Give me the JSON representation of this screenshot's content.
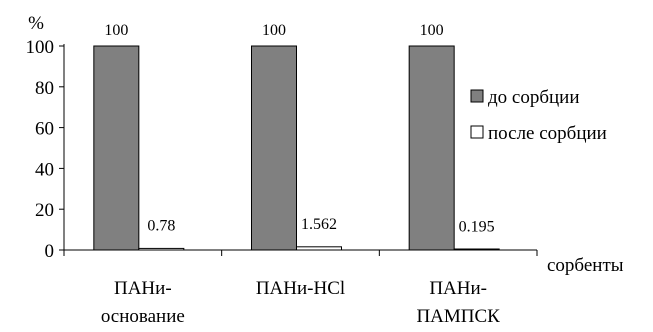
{
  "chart_data": {
    "type": "bar",
    "title": "",
    "ylabel": "%",
    "xlabel": "сорбенты",
    "ylim": [
      0,
      100
    ],
    "yticks": [
      0,
      20,
      40,
      60,
      80,
      100
    ],
    "categories": [
      [
        "ПАНи-",
        "основание"
      ],
      [
        "ПАНи-HCl"
      ],
      [
        "ПАНи-",
        "ПАМПСК"
      ]
    ],
    "series": [
      {
        "name": "до сорбции",
        "values": [
          100,
          100,
          100
        ],
        "labels": [
          "100",
          "100",
          "100"
        ],
        "color": "#808080"
      },
      {
        "name": "после сорбции",
        "values": [
          0.78,
          1.562,
          0.195
        ],
        "labels": [
          "0.78",
          "1.562",
          "0.195"
        ],
        "color": "#ffffff"
      }
    ],
    "legend_position": "right"
  }
}
